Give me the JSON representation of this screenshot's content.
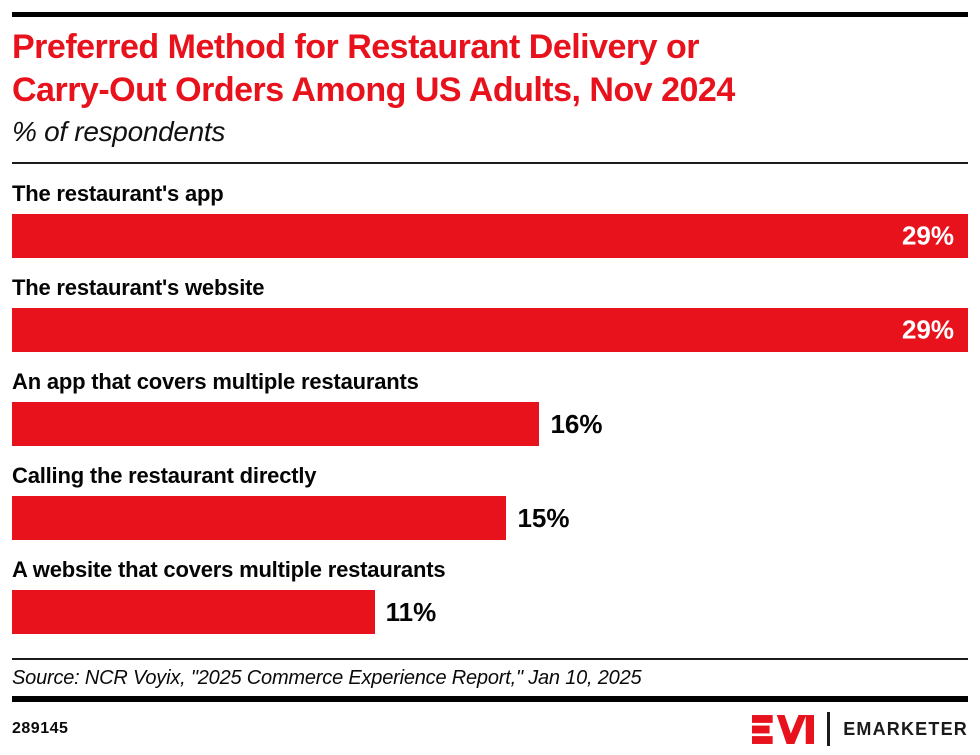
{
  "page": {
    "title_lines": [
      "Preferred Method for Restaurant Delivery or",
      "Carry-Out Orders Among US Adults, Nov 2024"
    ],
    "subtitle": "% of respondents",
    "source": "Source: NCR Voyix, \"2025 Commerce Experience Report,\" Jan 10, 2025",
    "chart_id": "289145",
    "brand": "EMARKETER",
    "colors": {
      "accent_red": "#e8121d",
      "text_black": "#050505",
      "rule_black": "#000000"
    }
  },
  "chart_data": {
    "type": "bar",
    "orientation": "horizontal",
    "title": "Preferred Method for Restaurant Delivery or Carry-Out Orders Among US Adults, Nov 2024",
    "subtitle": "% of respondents",
    "categories": [
      "The restaurant's app",
      "The restaurant's website",
      "An app that covers multiple restaurants",
      "Calling the restaurant directly",
      "A website that covers multiple restaurants"
    ],
    "values": [
      29,
      29,
      16,
      15,
      11
    ],
    "value_labels": [
      "29%",
      "29%",
      "16%",
      "15%",
      "11%"
    ],
    "xlim": [
      0,
      29
    ],
    "bar_color": "#e8121d",
    "grid": false,
    "legend": false,
    "source": "Source: NCR Voyix, \"2025 Commerce Experience Report,\" Jan 10, 2025"
  }
}
